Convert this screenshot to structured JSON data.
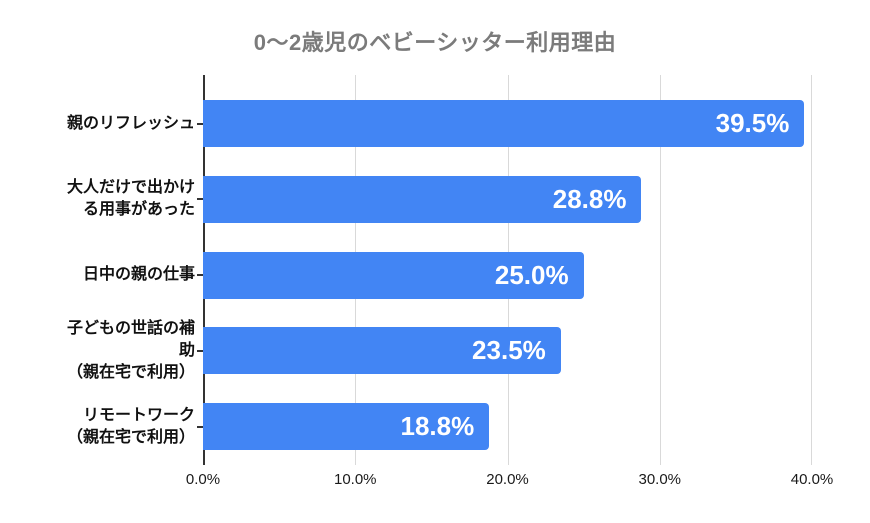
{
  "chart_data": {
    "type": "bar",
    "orientation": "horizontal",
    "title": "0〜2歳児のベビーシッター利用理由",
    "categories": [
      "親のリフレッシュ",
      "大人だけで出かける用事があった",
      "日中の親の仕事",
      "子どもの世話の補助（親在宅で利用）",
      "リモートワーク（親在宅で利用）"
    ],
    "category_labels": [
      "親のリフレッシュ",
      "大人だけで出かけ\nる用事があった",
      "日中の親の仕事",
      "子どもの世話の補\n助\n（親在宅で利用）",
      "リモートワーク\n（親在宅で利用）"
    ],
    "values": [
      39.5,
      28.8,
      25.0,
      23.5,
      18.8
    ],
    "value_labels": [
      "39.5%",
      "28.8%",
      "25.0%",
      "23.5%",
      "18.8%"
    ],
    "xlabel": "",
    "ylabel": "",
    "xlim": [
      0,
      40
    ],
    "x_ticks": [
      "0.0%",
      "10.0%",
      "20.0%",
      "30.0%",
      "40.0%"
    ],
    "x_tick_values": [
      0,
      10,
      20,
      30,
      40
    ],
    "grid": "vertical-on",
    "legend": "none",
    "colors": {
      "bar": "#4285F4",
      "value_label": "#FFFFFF",
      "title": "#7B7B7B",
      "category_label": "#111111",
      "gridline": "#D9D9D9",
      "axis_line": "#333333",
      "tick_label": "#1A1A1A",
      "background": "#FFFFFF"
    }
  }
}
